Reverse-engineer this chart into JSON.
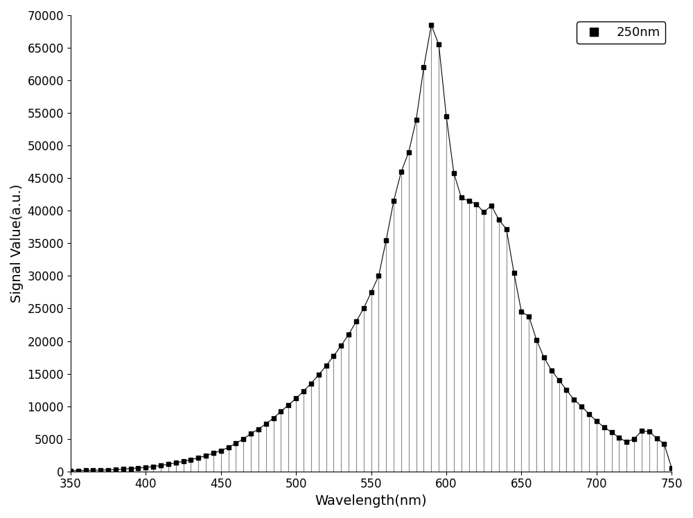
{
  "title": "",
  "xlabel": "Wavelength(nm)",
  "ylabel": "Signal Value(a.u.)",
  "legend_label": "250nm",
  "xlim": [
    350,
    750
  ],
  "ylim": [
    0,
    70000
  ],
  "yticks": [
    0,
    5000,
    10000,
    15000,
    20000,
    25000,
    30000,
    35000,
    40000,
    45000,
    50000,
    55000,
    60000,
    65000,
    70000
  ],
  "xticks": [
    350,
    400,
    450,
    500,
    550,
    600,
    650,
    700,
    750
  ],
  "background_color": "#ffffff",
  "line_color": "#888888",
  "marker_color": "#000000",
  "wavelengths": [
    350,
    355,
    360,
    365,
    370,
    375,
    380,
    385,
    390,
    395,
    400,
    405,
    410,
    415,
    420,
    425,
    430,
    435,
    440,
    445,
    450,
    455,
    460,
    465,
    470,
    475,
    480,
    485,
    490,
    495,
    500,
    505,
    510,
    515,
    520,
    525,
    530,
    535,
    540,
    545,
    550,
    555,
    560,
    565,
    570,
    575,
    580,
    585,
    590,
    595,
    600,
    605,
    610,
    615,
    620,
    625,
    630,
    635,
    640,
    645,
    650,
    655,
    660,
    665,
    670,
    675,
    680,
    685,
    690,
    695,
    700,
    705,
    710,
    715,
    720,
    725,
    730,
    735,
    740,
    745,
    750
  ],
  "values": [
    100,
    120,
    150,
    180,
    200,
    230,
    280,
    350,
    430,
    520,
    620,
    750,
    900,
    1100,
    1300,
    1550,
    1800,
    2100,
    2400,
    2800,
    3200,
    3700,
    4300,
    5000,
    5800,
    6500,
    7300,
    8200,
    9200,
    10200,
    11200,
    12300,
    13500,
    14800,
    16200,
    17700,
    19300,
    21000,
    23000,
    25000,
    27500,
    30000,
    35500,
    41500,
    46000,
    49000,
    54000,
    62000,
    68500,
    65500,
    54500,
    45800,
    42000,
    41500,
    41000,
    39800,
    40800,
    38600,
    37200,
    30500,
    24500,
    23800,
    20200,
    17500,
    15500,
    14000,
    12500,
    11000,
    10000,
    8800,
    7700,
    6800,
    6000,
    5200,
    4500,
    5000,
    6200,
    6100,
    5100,
    4200,
    500
  ]
}
